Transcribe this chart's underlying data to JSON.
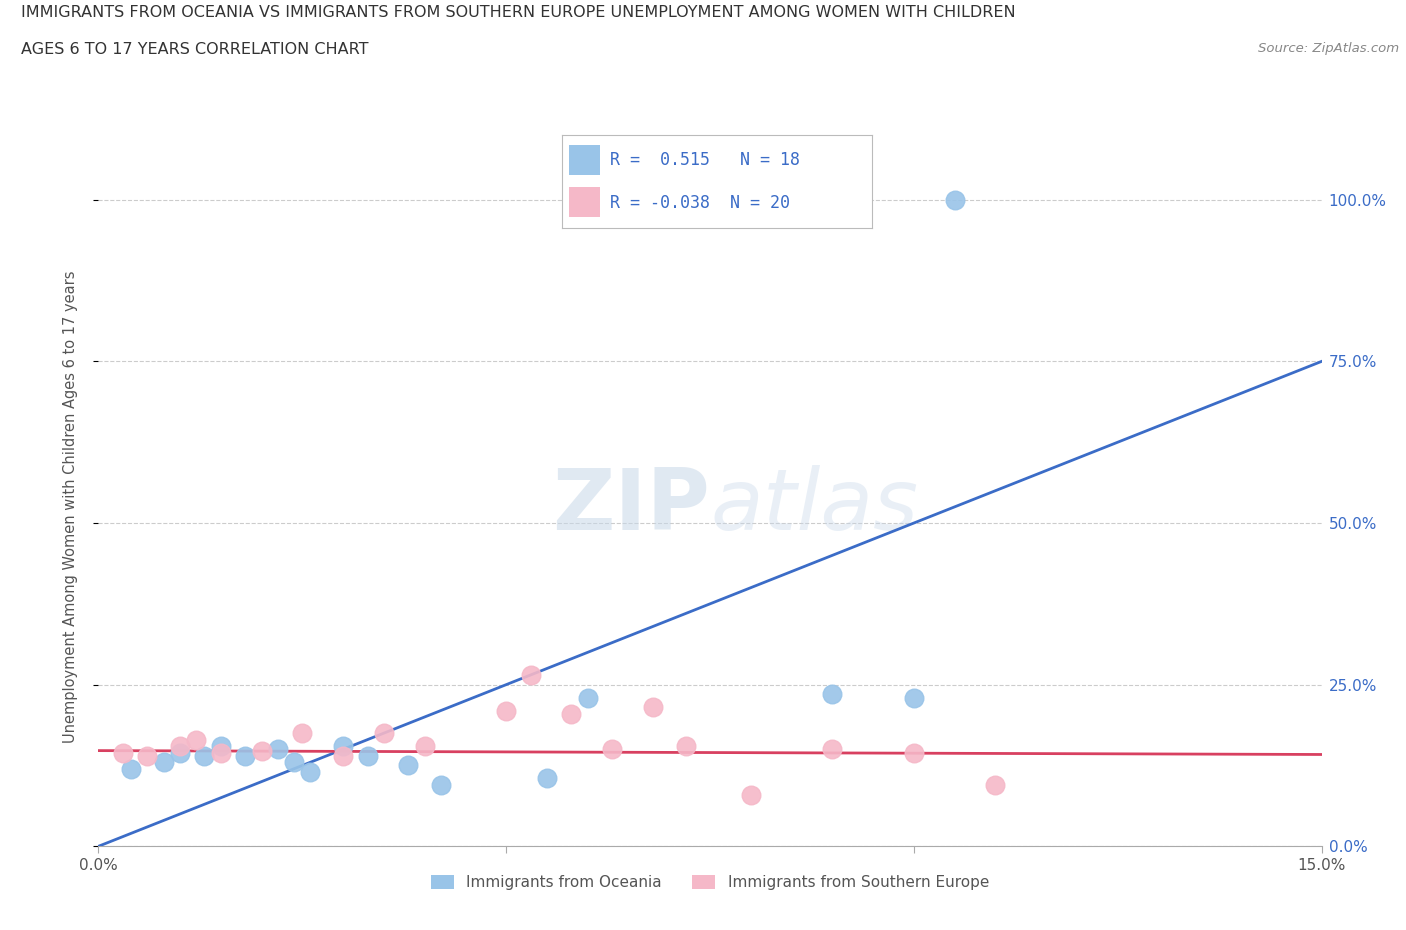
{
  "title_line1": "IMMIGRANTS FROM OCEANIA VS IMMIGRANTS FROM SOUTHERN EUROPE UNEMPLOYMENT AMONG WOMEN WITH CHILDREN",
  "title_line2": "AGES 6 TO 17 YEARS CORRELATION CHART",
  "source": "Source: ZipAtlas.com",
  "ylabel": "Unemployment Among Women with Children Ages 6 to 17 years",
  "xlim": [
    0.0,
    0.15
  ],
  "ylim": [
    0.0,
    1.05
  ],
  "xticks": [
    0.0,
    0.05,
    0.1,
    0.15
  ],
  "xticklabels": [
    "0.0%",
    "",
    "",
    "15.0%"
  ],
  "ytick_positions": [
    0.0,
    0.25,
    0.5,
    0.75,
    1.0
  ],
  "ytick_labels": [
    "0.0%",
    "25.0%",
    "50.0%",
    "75.0%",
    "100.0%"
  ],
  "oceania_color": "#99C4E8",
  "southern_europe_color": "#F5B8C8",
  "oceania_line_color": "#3B6CC7",
  "southern_europe_line_color": "#D84060",
  "label_color": "#3B6CC7",
  "R_oceania": "0.515",
  "N_oceania": "18",
  "R_southern": "-0.038",
  "N_southern": "20",
  "watermark_zip": "ZIP",
  "watermark_atlas": "atlas",
  "background_color": "#ffffff",
  "legend_label_1": "Immigrants from Oceania",
  "legend_label_2": "Immigrants from Southern Europe",
  "oceania_x": [
    0.004,
    0.008,
    0.01,
    0.013,
    0.015,
    0.018,
    0.022,
    0.024,
    0.026,
    0.03,
    0.033,
    0.038,
    0.042,
    0.055,
    0.06,
    0.09,
    0.1,
    0.105
  ],
  "oceania_y": [
    0.12,
    0.13,
    0.145,
    0.14,
    0.155,
    0.14,
    0.15,
    0.13,
    0.115,
    0.155,
    0.14,
    0.125,
    0.095,
    0.105,
    0.23,
    0.235,
    0.23,
    1.0
  ],
  "southern_x": [
    0.003,
    0.006,
    0.01,
    0.012,
    0.015,
    0.02,
    0.025,
    0.03,
    0.035,
    0.04,
    0.05,
    0.053,
    0.058,
    0.063,
    0.068,
    0.072,
    0.08,
    0.09,
    0.1,
    0.11
  ],
  "southern_y": [
    0.145,
    0.14,
    0.155,
    0.165,
    0.145,
    0.148,
    0.175,
    0.14,
    0.175,
    0.155,
    0.21,
    0.265,
    0.205,
    0.15,
    0.215,
    0.155,
    0.08,
    0.15,
    0.145,
    0.095
  ],
  "oceania_line_x0": 0.0,
  "oceania_line_y0": 0.0,
  "oceania_line_x1": 0.15,
  "oceania_line_y1": 0.75,
  "southern_line_x0": 0.0,
  "southern_line_y0": 0.148,
  "southern_line_x1": 0.15,
  "southern_line_y1": 0.142
}
